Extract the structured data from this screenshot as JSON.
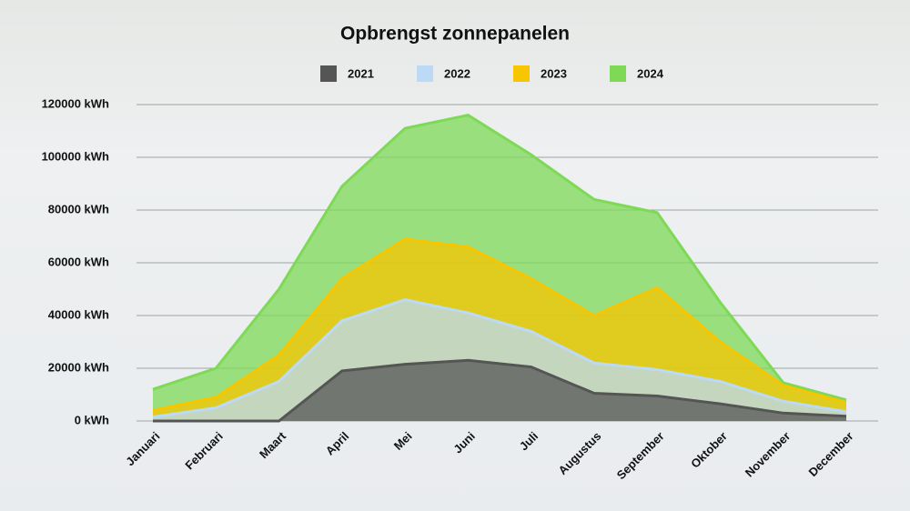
{
  "chart_data": {
    "type": "area",
    "title": "Opbrengst zonnepanelen",
    "categories": [
      "Januari",
      "Februari",
      "Maart",
      "April",
      "Mei",
      "Juni",
      "Juli",
      "Augustus",
      "September",
      "Oktober",
      "November",
      "December"
    ],
    "series": [
      {
        "name": "2021",
        "color": "#555555",
        "values": [
          0,
          0,
          0,
          19000,
          21500,
          23000,
          20500,
          10500,
          9500,
          6500,
          3000,
          1800
        ]
      },
      {
        "name": "2022",
        "color": "#bcdaf5",
        "values": [
          1500,
          5000,
          15000,
          38000,
          46000,
          41000,
          34000,
          22000,
          19500,
          15000,
          7500,
          3500
        ]
      },
      {
        "name": "2023",
        "color": "#f7c600",
        "values": [
          4000,
          9000,
          25000,
          54000,
          69000,
          66000,
          54000,
          40000,
          50500,
          30000,
          13500,
          7000
        ]
      },
      {
        "name": "2024",
        "color": "#7ed957",
        "values": [
          12000,
          20000,
          50000,
          89000,
          111000,
          116000,
          101000,
          84000,
          79000,
          45000,
          14500,
          8000
        ]
      }
    ],
    "ylim": [
      0,
      120000
    ],
    "yticks": [
      {
        "value": 0,
        "label": "0 kWh"
      },
      {
        "value": 20000,
        "label": "20000 kWh"
      },
      {
        "value": 40000,
        "label": "40000 kWh"
      },
      {
        "value": 60000,
        "label": "60000 kWh"
      },
      {
        "value": 80000,
        "label": "80000 kWh"
      },
      {
        "value": 100000,
        "label": "100000 kWh"
      },
      {
        "value": 120000,
        "label": "120000 kWh"
      }
    ],
    "grid": true
  }
}
